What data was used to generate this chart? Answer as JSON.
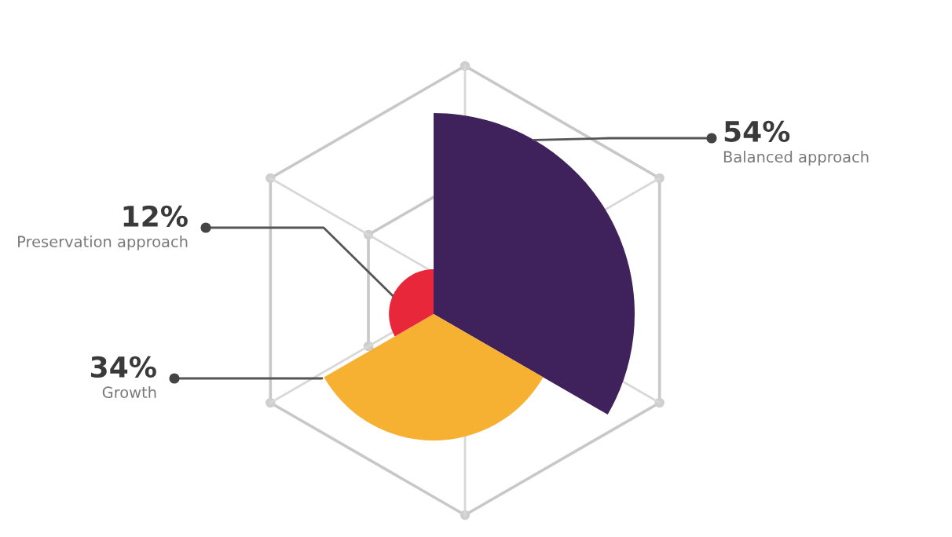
{
  "chart_data": {
    "type": "other",
    "categories": [
      "Balanced approach",
      "Growth",
      "Preservation approach"
    ],
    "values": [
      54,
      34,
      12
    ],
    "value_labels": [
      "54%",
      "34%",
      "12%"
    ],
    "colors": [
      "#3f215c",
      "#f6b133",
      "#e8273a"
    ]
  }
}
